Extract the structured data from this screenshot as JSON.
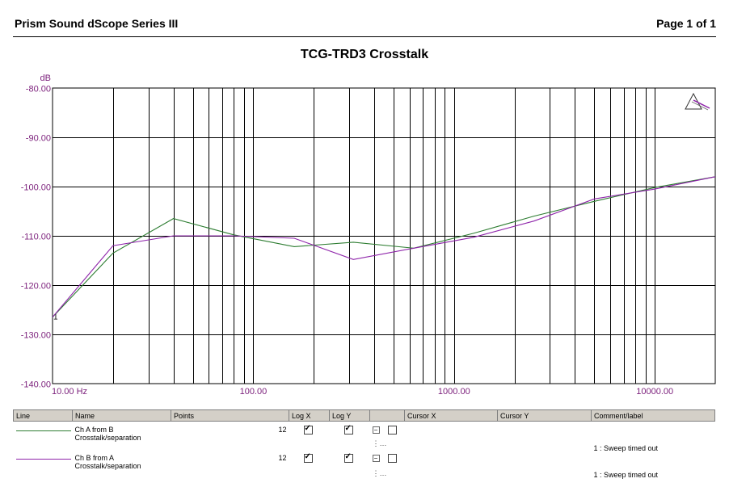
{
  "header": {
    "app_title": "Prism Sound dScope Series III",
    "page_label": "Page 1 of 1"
  },
  "chart_data": {
    "type": "line",
    "title": "TCG-TRD3 Crosstalk",
    "ylabel": "dB",
    "xlabel": "",
    "x_scale": "log",
    "xlim": [
      10,
      20000
    ],
    "ylim": [
      -140,
      -80
    ],
    "grid": true,
    "y_ticks": [
      "-80.00",
      "-90.00",
      "-100.00",
      "-110.00",
      "-120.00",
      "-130.00",
      "-140.00"
    ],
    "x_ticks": [
      {
        "value": 10,
        "label": "10.00 Hz"
      },
      {
        "value": 100,
        "label": "100.00"
      },
      {
        "value": 1000,
        "label": "1000.00"
      },
      {
        "value": 10000,
        "label": "10000.00"
      }
    ],
    "marker_label": "1",
    "series": [
      {
        "name": "Ch A  from B",
        "color": "#2e7d32",
        "x": [
          10,
          20,
          40,
          80,
          160,
          315,
          630,
          1250,
          2500,
          5000,
          10000,
          20000
        ],
        "y": [
          -126.5,
          -113.5,
          -106.5,
          -109.8,
          -112.2,
          -111.3,
          -112.5,
          -109.5,
          -106,
          -103,
          -100.2,
          -98
        ]
      },
      {
        "name": "Ch B  from A",
        "color": "#8e24aa",
        "x": [
          10,
          20,
          40,
          80,
          160,
          315,
          630,
          1250,
          2500,
          5000,
          10000,
          20000
        ],
        "y": [
          -126.5,
          -112,
          -110,
          -110,
          -110.5,
          -114.8,
          -112.5,
          -110.3,
          -107,
          -102.5,
          -100.5,
          -98
        ]
      }
    ]
  },
  "legend_table": {
    "columns": [
      "Line",
      "Name",
      "Points",
      "Log X",
      "Log Y",
      "",
      "Cursor X",
      "Cursor Y",
      "Comment/label"
    ],
    "rows": [
      {
        "color": "#2e7d32",
        "name": "Ch A  from B",
        "subname": "Crosstalk/separation",
        "points": "12",
        "log_x": true,
        "log_y": true,
        "comment": "1 : Sweep timed out"
      },
      {
        "color": "#8e24aa",
        "name": "Ch B  from A",
        "subname": "Crosstalk/separation",
        "points": "12",
        "log_x": true,
        "log_y": true,
        "comment": "1 : Sweep timed out"
      }
    ]
  }
}
